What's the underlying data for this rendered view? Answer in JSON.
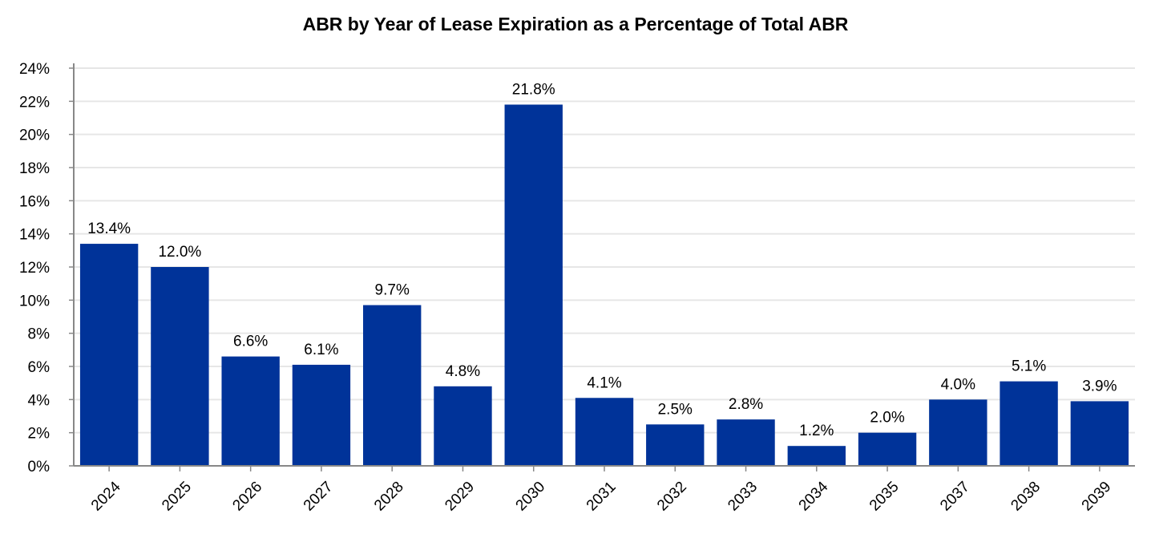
{
  "chart_data": {
    "type": "bar",
    "title": "ABR by Year of Lease Expiration as a Percentage of Total ABR",
    "xlabel": "",
    "ylabel": "",
    "categories": [
      "2024",
      "2025",
      "2026",
      "2027",
      "2028",
      "2029",
      "2030",
      "2031",
      "2032",
      "2033",
      "2034",
      "2035",
      "2037",
      "2038",
      "2039"
    ],
    "values": [
      13.4,
      12.0,
      6.6,
      6.1,
      9.7,
      4.8,
      21.8,
      4.1,
      2.5,
      2.8,
      1.2,
      2.0,
      4.0,
      5.1,
      3.9
    ],
    "data_labels": [
      "13.4%",
      "12.0%",
      "6.6%",
      "6.1%",
      "9.7%",
      "4.8%",
      "21.8%",
      "4.1%",
      "2.5%",
      "2.8%",
      "1.2%",
      "2.0%",
      "4.0%",
      "5.1%",
      "3.9%"
    ],
    "yticks": [
      0,
      2,
      4,
      6,
      8,
      10,
      12,
      14,
      16,
      18,
      20,
      22,
      24
    ],
    "ytick_labels": [
      "0%",
      "2%",
      "4%",
      "6%",
      "8%",
      "10%",
      "12%",
      "14%",
      "16%",
      "18%",
      "20%",
      "22%",
      "24%"
    ],
    "ylim": [
      0,
      24
    ],
    "grid": true,
    "legend": "none",
    "colors": {
      "bar": "#003399",
      "grid": "#e6e6e6",
      "axis": "#888888"
    }
  }
}
